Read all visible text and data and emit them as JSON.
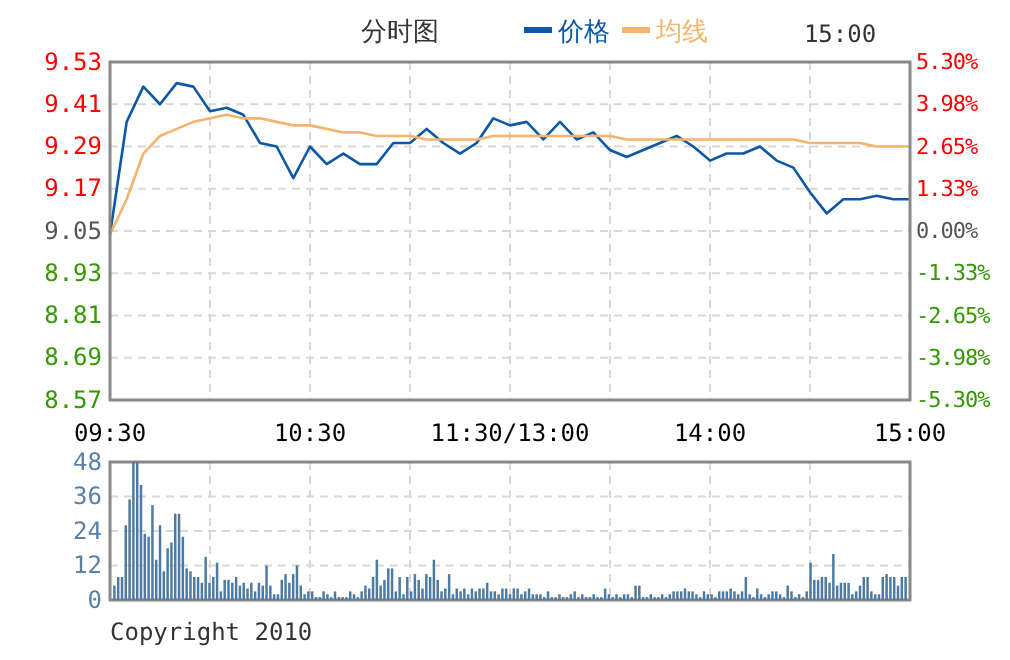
{
  "chart_data": [
    {
      "type": "line",
      "annotations": [
        "分时图",
        "15:00"
      ],
      "legend": "top",
      "grid": true,
      "categories": [
        "09:30",
        null,
        null,
        null,
        null,
        null,
        null,
        null,
        null,
        null,
        null,
        null,
        "10:30",
        null,
        null,
        null,
        null,
        null,
        null,
        null,
        null,
        null,
        null,
        null,
        "11:30/13:00",
        null,
        null,
        null,
        null,
        null,
        null,
        null,
        null,
        null,
        null,
        null,
        "14:00",
        null,
        null,
        null,
        null,
        null,
        null,
        null,
        null,
        null,
        null,
        null,
        "15:00"
      ],
      "ylim": [
        8.57,
        9.53
      ],
      "yticks": [
        8.57,
        8.69,
        8.81,
        8.93,
        9.05,
        9.17,
        9.29,
        9.41,
        9.53
      ],
      "y2lim": [
        -5.3,
        5.3
      ],
      "y2ticks": [
        {
          "value": -5.3,
          "label": "-5.30%"
        },
        {
          "value": -3.98,
          "label": "-3.98%"
        },
        {
          "value": -2.65,
          "label": "-2.65%"
        },
        {
          "value": -1.33,
          "label": "-1.33%"
        },
        {
          "value": 0,
          "label": "0.00%"
        },
        {
          "value": 1.33,
          "label": "1.33%"
        },
        {
          "value": 2.65,
          "label": "2.65%"
        },
        {
          "value": 3.98,
          "label": "3.98%"
        },
        {
          "value": 5.3,
          "label": "5.30%"
        }
      ],
      "series": [
        {
          "name": "价格",
          "color": "#0d58a6",
          "values": [
            9.04,
            9.36,
            9.46,
            9.41,
            9.47,
            9.46,
            9.39,
            9.4,
            9.38,
            9.3,
            9.29,
            9.2,
            9.29,
            9.24,
            9.27,
            9.24,
            9.24,
            9.3,
            9.3,
            9.34,
            9.3,
            9.27,
            9.3,
            9.37,
            9.35,
            9.36,
            9.31,
            9.36,
            9.31,
            9.33,
            9.28,
            9.26,
            9.28,
            9.3,
            9.32,
            9.29,
            9.25,
            9.27,
            9.27,
            9.29,
            9.25,
            9.23,
            9.16,
            9.1,
            9.14,
            9.14,
            9.15,
            9.14,
            9.14
          ]
        },
        {
          "name": "均线",
          "color": "#f5b36b",
          "values": [
            9.04,
            9.14,
            9.27,
            9.32,
            9.34,
            9.36,
            9.37,
            9.38,
            9.37,
            9.37,
            9.36,
            9.35,
            9.35,
            9.34,
            9.33,
            9.33,
            9.32,
            9.32,
            9.32,
            9.31,
            9.31,
            9.31,
            9.31,
            9.32,
            9.32,
            9.32,
            9.32,
            9.32,
            9.32,
            9.32,
            9.32,
            9.31,
            9.31,
            9.31,
            9.31,
            9.31,
            9.31,
            9.31,
            9.31,
            9.31,
            9.31,
            9.31,
            9.3,
            9.3,
            9.3,
            9.3,
            9.29,
            9.29,
            9.29
          ]
        }
      ]
    },
    {
      "type": "bar",
      "grid": true,
      "tick_labels": "y",
      "annotations": [
        "Copyright 2010"
      ],
      "color": "#4d7aa3",
      "ylim": [
        0,
        48
      ],
      "yticks": [
        0,
        12,
        24,
        36,
        48
      ],
      "categories": [
        null,
        null,
        null,
        null,
        null,
        null,
        null,
        null,
        null,
        null,
        null,
        null,
        null,
        null,
        null,
        null,
        null,
        null,
        null,
        null,
        null,
        null,
        null,
        null,
        null,
        null,
        null,
        null,
        null,
        null,
        null,
        null,
        null,
        null,
        null,
        null,
        null,
        null,
        null,
        null,
        null,
        null,
        null,
        null,
        null,
        null,
        null,
        null,
        null,
        null,
        null,
        null,
        null,
        null,
        null,
        null,
        null,
        null,
        null,
        null,
        null,
        null,
        null,
        null,
        null,
        null,
        null,
        null,
        null,
        null,
        null,
        null,
        null,
        null,
        null,
        null,
        null,
        null,
        null,
        null,
        null,
        null,
        null,
        null,
        null,
        null,
        null,
        null,
        null,
        null,
        null,
        null,
        null,
        null,
        null,
        null,
        null,
        null,
        null,
        null,
        null,
        null,
        null,
        null,
        null,
        null,
        null,
        null,
        null,
        null,
        null,
        null,
        null,
        null,
        null,
        null,
        null,
        null,
        null,
        null,
        null,
        null,
        null,
        null,
        null,
        null,
        null,
        null,
        null,
        null,
        null,
        null,
        null,
        null,
        null,
        null,
        null,
        null,
        null,
        null,
        null,
        null,
        null,
        null,
        null,
        null,
        null,
        null,
        null,
        null,
        null,
        null,
        null,
        null,
        null,
        null,
        null,
        null,
        null,
        null,
        null,
        null,
        null,
        null,
        null,
        null,
        null,
        null,
        null,
        null,
        null,
        null,
        null,
        null,
        null,
        null,
        null,
        null,
        null,
        null,
        null,
        null,
        null,
        null,
        null,
        null,
        null,
        null,
        null,
        null,
        null,
        null,
        null,
        null,
        null,
        null,
        null,
        null,
        null,
        null,
        null,
        null,
        null,
        null,
        null,
        null,
        null,
        null,
        null
      ],
      "values": [
        5,
        8,
        8,
        26,
        35,
        48,
        48,
        40,
        23,
        22,
        33,
        14,
        26,
        10,
        18,
        20,
        30,
        30,
        22,
        11,
        10,
        8,
        8,
        6,
        15,
        6,
        8,
        13,
        3,
        7,
        7,
        6,
        8,
        5,
        6,
        4,
        6,
        3,
        6,
        5,
        12,
        5,
        2,
        2,
        7,
        9,
        6,
        9,
        12,
        5,
        2,
        3,
        3,
        1,
        1,
        3,
        2,
        1,
        3,
        1,
        1,
        1,
        3,
        2,
        1,
        3,
        5,
        4,
        8,
        14,
        5,
        7,
        11,
        11,
        3,
        8,
        2,
        8,
        3,
        9,
        7,
        4,
        9,
        8,
        14,
        7,
        3,
        4,
        9,
        2,
        4,
        3,
        4,
        2,
        4,
        3,
        4,
        4,
        6,
        3,
        3,
        2,
        4,
        4,
        2,
        4,
        4,
        2,
        3,
        4,
        2,
        2,
        2,
        1,
        3,
        1,
        1,
        2,
        1,
        1,
        2,
        3,
        1,
        2,
        1,
        1,
        2,
        1,
        1,
        4,
        2,
        1,
        2,
        1,
        2,
        2,
        1,
        5,
        5,
        1,
        1,
        2,
        1,
        1,
        2,
        1,
        2,
        3,
        3,
        3,
        4,
        3,
        3,
        2,
        1,
        3,
        2,
        2,
        1,
        3,
        3,
        3,
        4,
        3,
        2,
        3,
        8,
        2,
        1,
        4,
        2,
        1,
        2,
        3,
        3,
        2,
        1,
        5,
        3,
        1,
        2,
        1,
        3,
        13,
        7,
        7,
        8,
        8,
        6,
        16,
        5,
        6,
        6,
        6,
        2,
        3,
        5,
        8,
        8,
        3,
        2,
        2,
        8,
        9,
        8,
        8,
        5,
        8,
        8
      ]
    }
  ]
}
